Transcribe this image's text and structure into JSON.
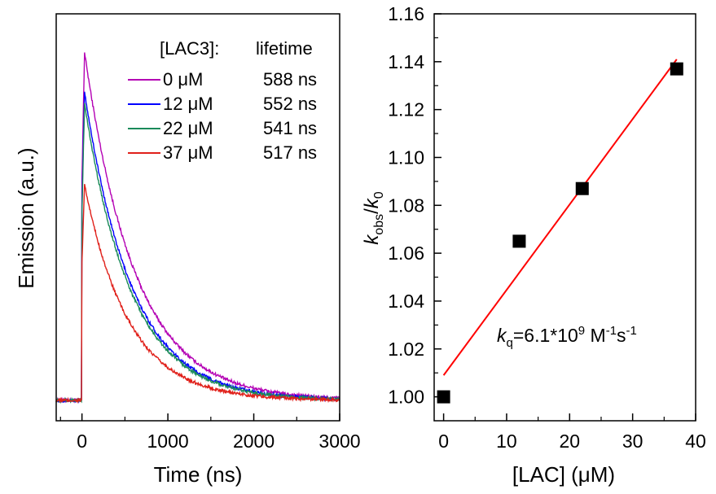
{
  "chart_data": [
    {
      "type": "line",
      "xlabel": "Time (ns)",
      "ylabel": "Emission (a.u.)",
      "xlim": [
        -300,
        3000
      ],
      "ylim": [
        0,
        1
      ],
      "x_ticks": [
        0,
        1000,
        2000,
        3000
      ],
      "y_ticks_shown": false,
      "legend_header": {
        "conc": "[LAC3]:",
        "lifetime": "lifetime"
      },
      "legend_position": "top-right",
      "baseline": 0.05,
      "rise_time_ns": 0,
      "series": [
        {
          "name": "0 μM",
          "lifetime_label": "588 ns",
          "lifetime_ns": 588,
          "peak": 0.95,
          "color": "#b400b4"
        },
        {
          "name": "12 μM",
          "lifetime_label": "552 ns",
          "lifetime_ns": 552,
          "peak": 0.85,
          "color": "#0000ff"
        },
        {
          "name": "22 μM",
          "lifetime_label": "541 ns",
          "lifetime_ns": 541,
          "peak": 0.82,
          "color": "#1a8a5a"
        },
        {
          "name": "37 μM",
          "lifetime_label": "517 ns",
          "lifetime_ns": 517,
          "peak": 0.61,
          "color": "#e0201a"
        }
      ]
    },
    {
      "type": "scatter",
      "xlabel": "[LAC] (μM)",
      "ylabel": {
        "k": "k",
        "sub1": "obs",
        "slash": "/",
        "k2": "k",
        "sub2": "0"
      },
      "xlim": [
        -1.5,
        40
      ],
      "ylim": [
        0.99,
        1.16
      ],
      "x_ticks": [
        0,
        10,
        20,
        30,
        40
      ],
      "y_ticks": [
        1.0,
        1.02,
        1.04,
        1.06,
        1.08,
        1.1,
        1.12,
        1.14,
        1.16
      ],
      "y_tick_labels": [
        "1.00",
        "1.02",
        "1.04",
        "1.06",
        "1.08",
        "1.10",
        "1.12",
        "1.14",
        "1.16"
      ],
      "points": [
        {
          "x": 0,
          "y": 1.0
        },
        {
          "x": 12,
          "y": 1.065
        },
        {
          "x": 22,
          "y": 1.087
        },
        {
          "x": 37,
          "y": 1.137
        }
      ],
      "fit": {
        "x1": 0,
        "y1": 1.009,
        "x2": 37,
        "y2": 1.141,
        "color": "#ff0000"
      },
      "annotation": {
        "k": "k",
        "sub": "q",
        "eq": "=6.1*10",
        "exp": "9",
        "unit1": " M",
        "exp2": "-1",
        "unit2": "s",
        "exp3": "-1"
      }
    }
  ]
}
